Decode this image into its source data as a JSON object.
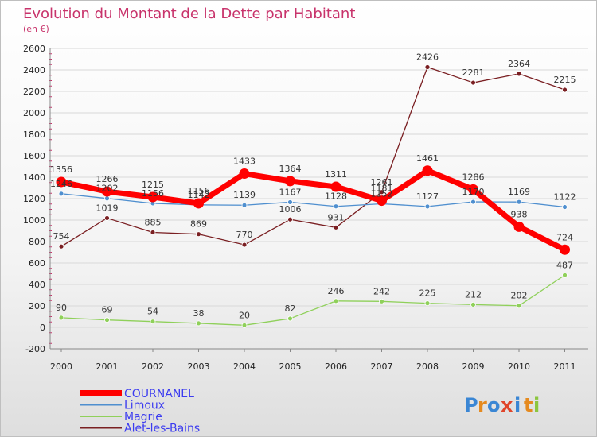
{
  "chart_data": {
    "type": "line",
    "title": "Evolution du Montant de la Dette par Habitant",
    "subtitle": "(en €)",
    "x": [
      "2000",
      "2001",
      "2002",
      "2003",
      "2004",
      "2005",
      "2006",
      "2007",
      "2008",
      "2009",
      "2010",
      "2011"
    ],
    "ylim": [
      -200,
      2600
    ],
    "yticks": [
      -200,
      0,
      200,
      400,
      600,
      800,
      1000,
      1200,
      1400,
      1600,
      1800,
      2000,
      2200,
      2400,
      2600
    ],
    "grid": "horizontal",
    "legend_position": "bottom-left",
    "series": [
      {
        "name": "COURNANEL",
        "color": "#ff0000",
        "values": [
          1356,
          1266,
          1215,
          1156,
          1433,
          1364,
          1311,
          1181,
          1461,
          1286,
          938,
          724
        ]
      },
      {
        "name": "Limoux",
        "color": "#4f8fcf",
        "values": [
          1246,
          1202,
          1156,
          1142,
          1139,
          1167,
          1128,
          1152,
          1127,
          1170,
          1169,
          1122
        ]
      },
      {
        "name": "Magrie",
        "color": "#8fd05a",
        "values": [
          90,
          69,
          54,
          38,
          20,
          82,
          246,
          242,
          225,
          212,
          202,
          487
        ]
      },
      {
        "name": "Alet-les-Bains",
        "color": "#7a1f22",
        "values": [
          754,
          1019,
          885,
          869,
          770,
          1006,
          931,
          1261,
          2426,
          2281,
          2364,
          2215
        ]
      }
    ]
  },
  "logo": {
    "letters": [
      "P",
      "r",
      "o",
      "x",
      "i",
      "t",
      "i"
    ]
  }
}
